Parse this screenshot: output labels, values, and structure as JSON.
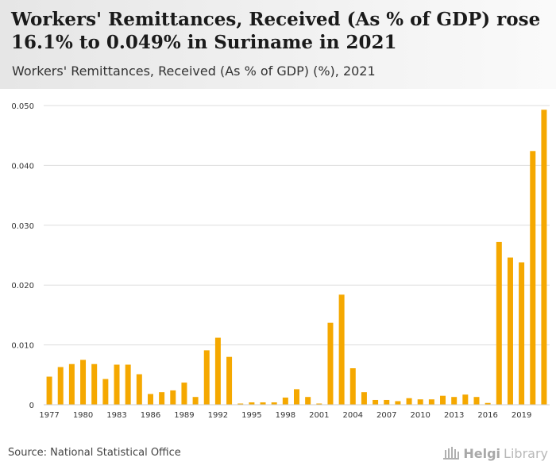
{
  "header": {
    "title": "Workers' Remittances, Received (As % of GDP) rose 16.1% to 0.049% in Suriname in 2021",
    "subtitle": "Workers' Remittances, Received (As % of GDP) (%), 2021"
  },
  "footer": {
    "source": "Source: National Statistical Office",
    "brand_bold": "Helgi",
    "brand_light": "Library"
  },
  "colors": {
    "bar": "#f5a800",
    "grid": "#dddddd",
    "axis_text": "#333333"
  },
  "chart_data": {
    "type": "bar",
    "title": "Workers' Remittances, Received (As % of GDP) (%), 2021",
    "xlabel": "",
    "ylabel": "",
    "ylim": [
      0,
      0.05
    ],
    "yticks": [
      0,
      0.01,
      0.02,
      0.03,
      0.04,
      0.05
    ],
    "ytick_labels": [
      "0",
      "0.010",
      "0.020",
      "0.030",
      "0.040",
      "0.050"
    ],
    "grid": true,
    "categories": [
      "1977",
      "1978",
      "1979",
      "1980",
      "1981",
      "1982",
      "1983",
      "1984",
      "1985",
      "1986",
      "1987",
      "1988",
      "1989",
      "1990",
      "1991",
      "1992",
      "1993",
      "1994",
      "1995",
      "1996",
      "1997",
      "1998",
      "1999",
      "2000",
      "2001",
      "2002",
      "2003",
      "2004",
      "2005",
      "2006",
      "2007",
      "2008",
      "2009",
      "2010",
      "2011",
      "2012",
      "2013",
      "2014",
      "2015",
      "2016",
      "2017",
      "2018",
      "2019",
      "2020",
      "2021"
    ],
    "xtick_labels": [
      "1977",
      "1980",
      "1983",
      "1986",
      "1989",
      "1992",
      "1995",
      "1998",
      "2001",
      "2004",
      "2007",
      "2010",
      "2013",
      "2016",
      "2019"
    ],
    "values": [
      0.0047,
      0.0063,
      0.0068,
      0.0075,
      0.0068,
      0.0043,
      0.0067,
      0.0067,
      0.0051,
      0.0018,
      0.0021,
      0.0024,
      0.0037,
      0.0013,
      0.0091,
      0.0112,
      0.008,
      0.0002,
      0.0004,
      0.0004,
      0.0004,
      0.0012,
      0.0026,
      0.0013,
      0.0002,
      0.0137,
      0.0184,
      0.0061,
      0.0021,
      0.0008,
      0.0008,
      0.0006,
      0.0011,
      0.0009,
      0.0009,
      0.0015,
      0.0013,
      0.0017,
      0.0013,
      0.0003,
      0.0272,
      0.0246,
      0.0238,
      0.0424,
      0.0493
    ]
  }
}
